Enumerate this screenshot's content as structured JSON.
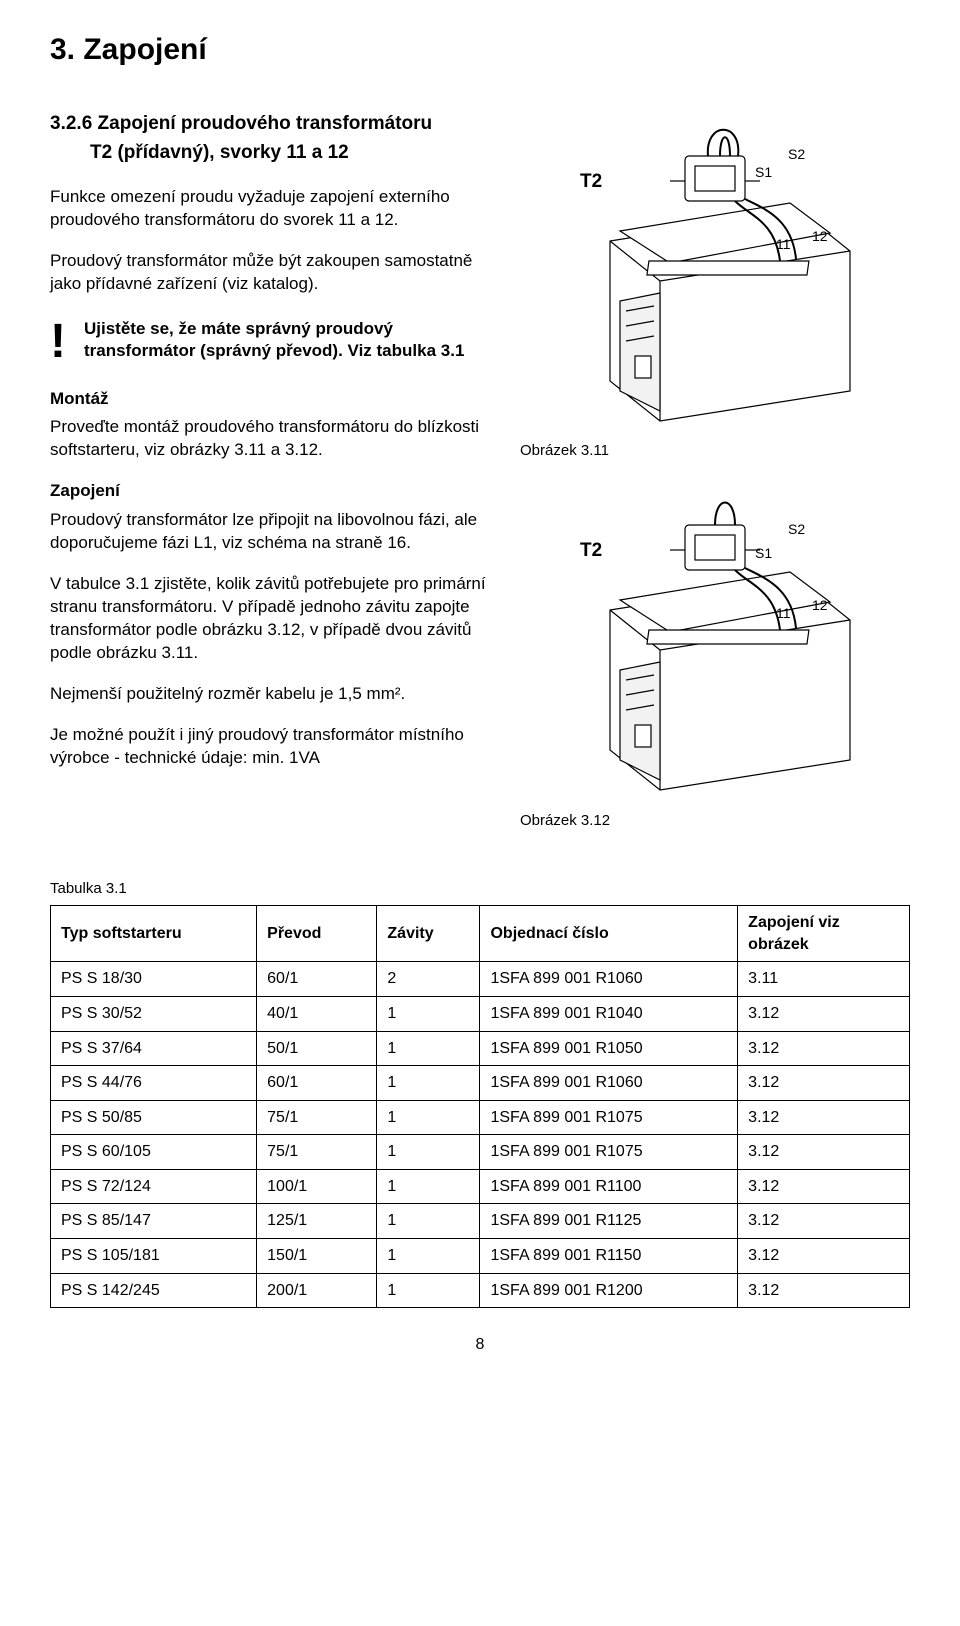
{
  "heading": "3. Zapojení",
  "subsection_num": "3.2.6 Zapojení proudového transformátoru",
  "subsection_sub": "T2 (přídavný), svorky 11 a 12",
  "para1": "Funkce omezení proudu vyžaduje zapojení externího proudového transformátoru do svorek 11 a 12.",
  "para2": "Proudový transformátor může být zakoupen samostatně jako přídavné zařízení (viz katalog).",
  "warn_text": "Ujistěte se, že máte správný proudový transformátor (správný převod). Viz tabulka 3.1",
  "montaz_head": "Montáž",
  "montaz_text": "Proveďte montáž proudového transformátoru do blízkosti softstarteru, viz obrázky 3.11 a 3.12.",
  "zap_head": "Zapojení",
  "zap_p1": "Proudový transformátor lze připojit na libovolnou fázi, ale doporučujeme fázi L1, viz schéma na straně 16.",
  "zap_p2": "V tabulce 3.1 zjistěte, kolik závitů potřebujete pro primární stranu transformátoru. V případě jednoho závitu zapojte transformátor podle obrázku 3.12, v případě dvou závitů podle obrázku 3.11.",
  "zap_p3": "Nejmenší použitelný rozměr kabelu je  1,5 mm².",
  "zap_p4": "Je možné použít i jiný proudový transformátor místního výrobce - technické údaje: min. 1VA",
  "fig1_label": "Obrázek 3.11",
  "fig2_label": "Obrázek 3.12",
  "fig_labels": {
    "t2": "T2",
    "s1": "S1",
    "s2": "S2",
    "t11": "11",
    "t12": "12"
  },
  "table_label": "Tabulka 3.1",
  "table": {
    "columns": [
      "Typ softstarteru",
      "Převod",
      "Závity",
      "Objednací číslo",
      "Zapojení viz obrázek"
    ],
    "rows": [
      [
        "PS S 18/30",
        "60/1",
        "2",
        "1SFA 899 001 R1060",
        "3.11"
      ],
      [
        "PS S 30/52",
        "40/1",
        "1",
        "1SFA 899 001 R1040",
        "3.12"
      ],
      [
        "PS S 37/64",
        "50/1",
        "1",
        "1SFA 899 001 R1050",
        "3.12"
      ],
      [
        "PS S 44/76",
        "60/1",
        "1",
        "1SFA 899 001 R1060",
        "3.12"
      ],
      [
        "PS S 50/85",
        "75/1",
        "1",
        "1SFA 899 001 R1075",
        "3.12"
      ],
      [
        "PS S 60/105",
        "75/1",
        "1",
        "1SFA 899 001 R1075",
        "3.12"
      ],
      [
        "PS S 72/124",
        "100/1",
        "1",
        "1SFA 899 001 R1100",
        "3.12"
      ],
      [
        "PS S 85/147",
        "125/1",
        "1",
        "1SFA 899 001 R1125",
        "3.12"
      ],
      [
        "PS S 105/181",
        "150/1",
        "1",
        "1SFA 899 001 R1150",
        "3.12"
      ],
      [
        "PS S 142/245",
        "200/1",
        "1",
        "1SFA 899 001 R1200",
        "3.12"
      ]
    ],
    "col_widths": [
      "24%",
      "14%",
      "12%",
      "30%",
      "20%"
    ]
  },
  "page_num": "8",
  "colors": {
    "line": "#000000",
    "fill": "#ffffff",
    "light": "#f2f2f2"
  }
}
